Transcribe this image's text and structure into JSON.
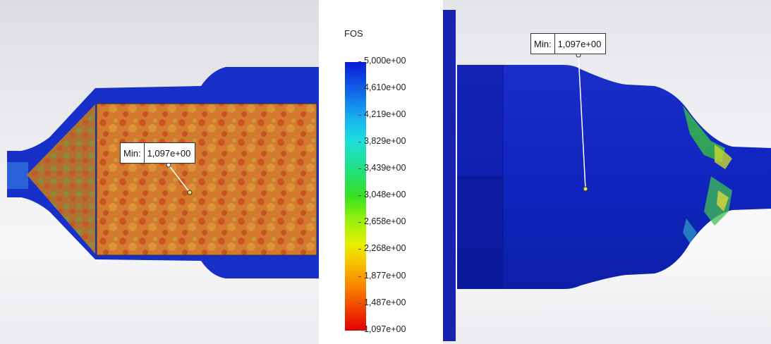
{
  "left_view": {
    "min_label": "Min:",
    "min_value": "1,097e+00"
  },
  "legend": {
    "title": "FOS",
    "ticks": [
      "5,000e+00",
      "4,610e+00",
      "4,219e+00",
      "3,829e+00",
      "3,439e+00",
      "3,048e+00",
      "2,658e+00",
      "2,268e+00",
      "1,877e+00",
      "1,487e+00",
      "1,097e+00"
    ],
    "max_color": "#0a1bd8",
    "min_color": "#e00000"
  },
  "right_view": {
    "min_label": "Min:",
    "min_value": "1,097e+00"
  },
  "colors": {
    "part_blue": "#1428c8",
    "core_orange": "#d8782a",
    "flange_blue": "#1a22b0"
  }
}
